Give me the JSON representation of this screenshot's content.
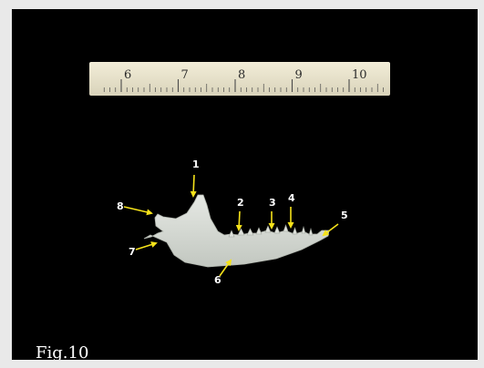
{
  "image": {
    "figure_label": "Fig.10",
    "background_color": "#000000",
    "arrow_color": "#f5e21a",
    "bone_color": "#d9ddd7",
    "ruler": {
      "numbers": [
        "6",
        "7",
        "8",
        "9",
        "10"
      ],
      "color": "#e8e2c9"
    },
    "callouts": [
      {
        "number": "1"
      },
      {
        "number": "2"
      },
      {
        "number": "3"
      },
      {
        "number": "4"
      },
      {
        "number": "5"
      },
      {
        "number": "6"
      },
      {
        "number": "7"
      },
      {
        "number": "8"
      }
    ]
  }
}
